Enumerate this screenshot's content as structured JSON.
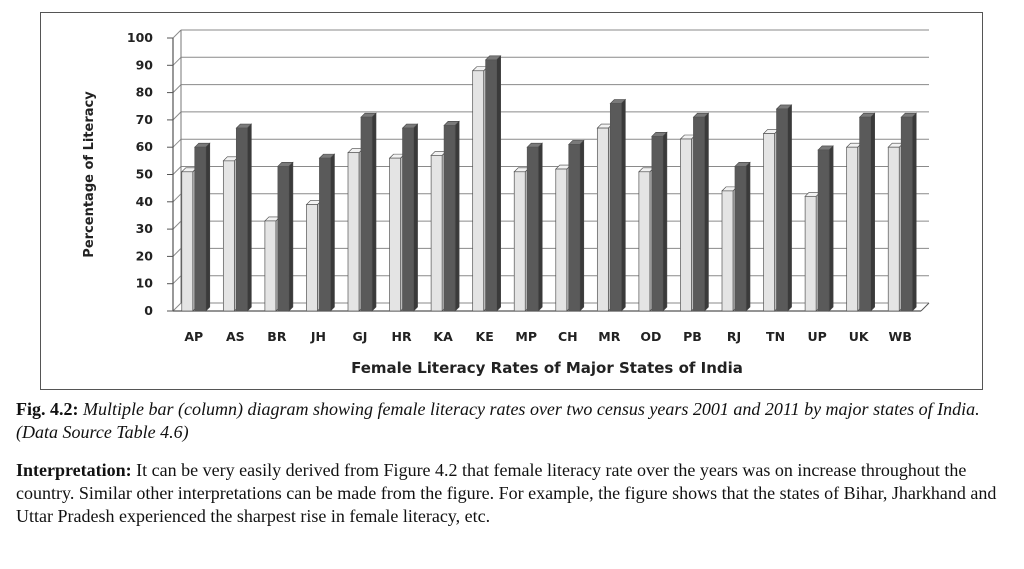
{
  "chart_data": {
    "type": "bar",
    "categories": [
      "AP",
      "AS",
      "BR",
      "JH",
      "GJ",
      "HR",
      "KA",
      "KE",
      "MP",
      "CH",
      "MR",
      "OD",
      "PB",
      "RJ",
      "TN",
      "UP",
      "UK",
      "WB"
    ],
    "series": [
      {
        "values": [
          51,
          55,
          33,
          39,
          58,
          56,
          57,
          88,
          51,
          52,
          67,
          51,
          63,
          44,
          65,
          42,
          60,
          60
        ]
      },
      {
        "values": [
          60,
          67,
          53,
          56,
          71,
          67,
          68,
          92,
          60,
          61,
          76,
          64,
          71,
          53,
          74,
          59,
          71,
          71
        ]
      }
    ],
    "xlabel": "Female Literacy Rates of Major States of India",
    "ylabel": "Percentage of Literacy",
    "ylim": [
      0,
      100
    ],
    "yticks": [
      0,
      10,
      20,
      30,
      40,
      50,
      60,
      70,
      80,
      90,
      100
    ],
    "grid": true,
    "colors": {
      "series0": "#e4e4e4",
      "series1": "#5a5a5a",
      "grid": "#8a8a8a"
    }
  },
  "caption": {
    "fig_num": "Fig. 4.2:",
    "text": " Multiple bar (column) diagram showing female literacy rates over two census years 2001 and 2011 by major states of India. (Data Source Table 4.6)"
  },
  "interpretation": {
    "heading": "Interpretation:",
    "text": " It can be very easily derived from Figure 4.2 that female literacy rate over the years was on increase throughout the country. Similar other interpretations can be made from the figure. For example, the figure shows that the states  of Bihar, Jharkhand and Uttar Pradesh experienced the sharpest rise in female literacy, etc."
  }
}
